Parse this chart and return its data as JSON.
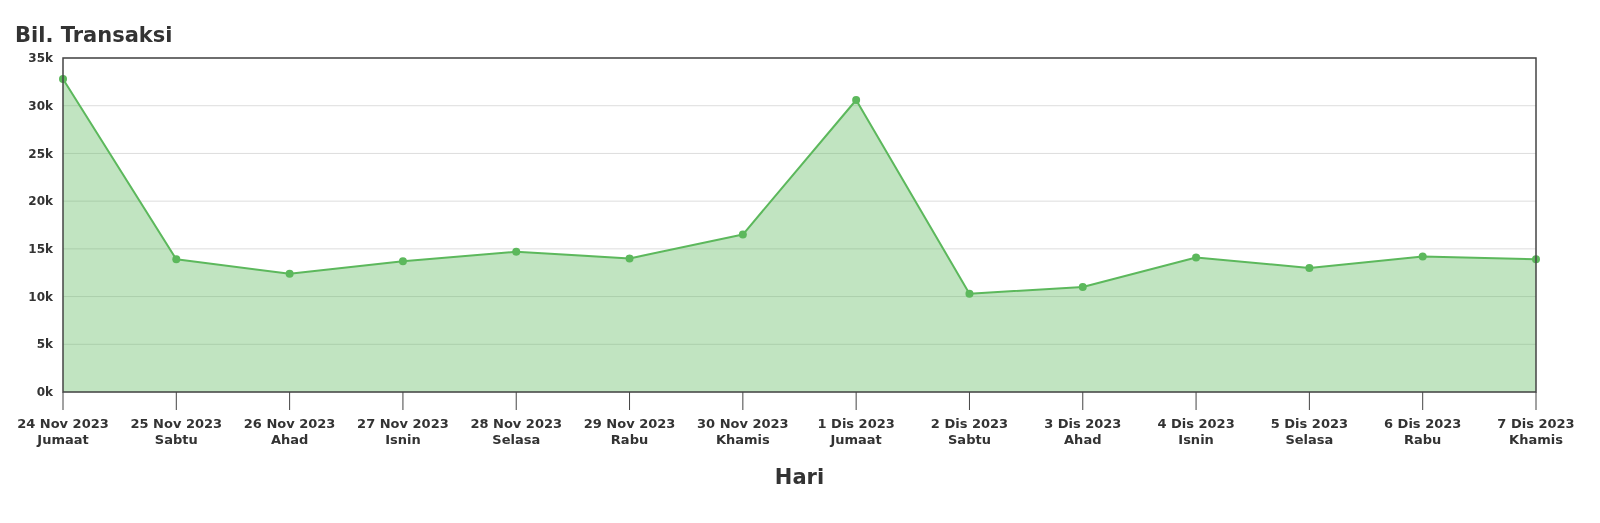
{
  "chart_data": {
    "type": "area",
    "title": "Bil. Transaksi",
    "xlabel": "Hari",
    "categories": [
      "24 Nov 2023\nJumaat",
      "25 Nov 2023\nSabtu",
      "26 Nov 2023\nAhad",
      "27 Nov 2023\nIsnin",
      "28 Nov 2023\nSelasa",
      "29 Nov 2023\nRabu",
      "30 Nov 2023\nKhamis",
      "1 Dis 2023\nJumaat",
      "2 Dis 2023\nSabtu",
      "3 Dis 2023\nAhad",
      "4 Dis 2023\nIsnin",
      "5 Dis 2023\nSelasa",
      "6 Dis 2023\nRabu",
      "7 Dis 2023\nKhamis"
    ],
    "series": [
      {
        "color": "#5cb85c",
        "values": [
          32800,
          13900,
          12400,
          13700,
          14700,
          14000,
          16500,
          30600,
          10300,
          11000,
          14100,
          13000,
          14200,
          13900
        ]
      }
    ],
    "ylim": [
      0,
      35000
    ],
    "yticks": [
      {
        "value": 0,
        "label": "0k"
      },
      {
        "value": 5000,
        "label": "5k"
      },
      {
        "value": 10000,
        "label": "10k"
      },
      {
        "value": 15000,
        "label": "15k"
      },
      {
        "value": 20000,
        "label": "20k"
      },
      {
        "value": 25000,
        "label": "25k"
      },
      {
        "value": 30000,
        "label": "30k"
      },
      {
        "value": 35000,
        "label": "35k"
      }
    ],
    "grid": "y",
    "marker": "circle",
    "line_style": "solid"
  }
}
